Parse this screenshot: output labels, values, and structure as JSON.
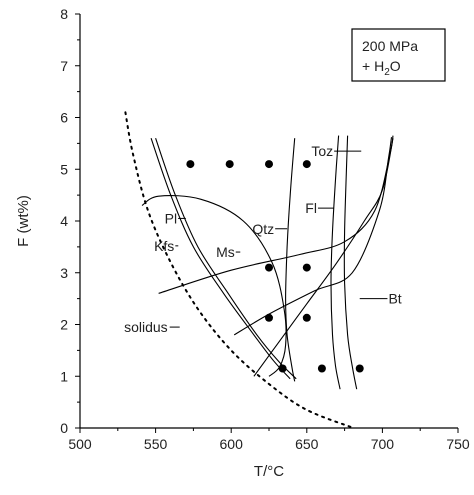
{
  "chart_data": {
    "type": "scatter",
    "title": "",
    "xlabel": "T/°C",
    "ylabel": "F (wt%)",
    "xlim": [
      500,
      750
    ],
    "ylim": [
      0,
      8
    ],
    "xticks": [
      "500",
      "550",
      "600",
      "650",
      "700",
      "750"
    ],
    "yticks": [
      "0",
      "1",
      "2",
      "3",
      "4",
      "5",
      "6",
      "7",
      "8"
    ],
    "grid": false,
    "conditions": {
      "line1": "200 MPa",
      "line2_prefix": "+ H",
      "line2_sub": "2",
      "line2_suffix": "O"
    },
    "points": [
      {
        "x": 573,
        "y": 5.1
      },
      {
        "x": 599,
        "y": 5.1
      },
      {
        "x": 625,
        "y": 5.1
      },
      {
        "x": 650,
        "y": 5.1
      },
      {
        "x": 625,
        "y": 3.1
      },
      {
        "x": 650,
        "y": 3.1
      },
      {
        "x": 625,
        "y": 2.13
      },
      {
        "x": 650,
        "y": 2.13
      },
      {
        "x": 634,
        "y": 1.15
      },
      {
        "x": 660,
        "y": 1.15
      },
      {
        "x": 685,
        "y": 1.15
      }
    ],
    "solidus": {
      "label": "solidus",
      "points": [
        [
          530,
          6.1
        ],
        [
          535,
          5.3
        ],
        [
          545,
          4.2
        ],
        [
          560,
          3.2
        ],
        [
          578,
          2.3
        ],
        [
          600,
          1.5
        ],
        [
          625,
          0.85
        ],
        [
          650,
          0.35
        ],
        [
          681,
          0.0
        ]
      ],
      "label_pos": [
        558,
        1.95
      ]
    },
    "curves": [
      {
        "name": "Kfs",
        "label": "Kfs",
        "points": [
          [
            547,
            5.6
          ],
          [
            560,
            4.5
          ],
          [
            575,
            3.5
          ],
          [
            595,
            2.6
          ],
          [
            615,
            1.8
          ],
          [
            628,
            1.3
          ],
          [
            639,
            0.95
          ]
        ],
        "label_pos": [
          549,
          3.52
        ],
        "leader_at": [
          565,
          3.52
        ]
      },
      {
        "name": "Pl",
        "label": "Pl",
        "points": [
          [
            550,
            5.6
          ],
          [
            563,
            4.5
          ],
          [
            578,
            3.5
          ],
          [
            598,
            2.6
          ],
          [
            617,
            1.8
          ],
          [
            631,
            1.3
          ],
          [
            643,
            0.95
          ]
        ],
        "label_pos": [
          556,
          4.05
        ],
        "leader_at": [
          570,
          4.05
        ]
      },
      {
        "name": "Ms",
        "label": "Ms",
        "points": [
          [
            541,
            4.3
          ],
          [
            552,
            4.48
          ],
          [
            580,
            4.42
          ],
          [
            608,
            4.0
          ],
          [
            627,
            3.2
          ],
          [
            635,
            2.3
          ],
          [
            636,
            1.6
          ],
          [
            632,
            1.18
          ],
          [
            625,
            1.0
          ]
        ],
        "label_pos": [
          590,
          3.4
        ],
        "leader_at": [
          606,
          3.5
        ]
      },
      {
        "name": "Qtz",
        "label": "Qtz",
        "points": [
          [
            642,
            5.6
          ],
          [
            639,
            4.5
          ],
          [
            637,
            3.5
          ],
          [
            636,
            2.5
          ],
          [
            637,
            1.8
          ],
          [
            640,
            1.2
          ],
          [
            642,
            0.9
          ]
        ],
        "label_pos": [
          614,
          3.85
        ],
        "leader_at": [
          637,
          3.85
        ]
      },
      {
        "name": "Fl",
        "label": "Fl",
        "points": [
          [
            552,
            2.6
          ],
          [
            600,
            3.05
          ],
          [
            645,
            3.35
          ],
          [
            675,
            3.6
          ],
          [
            695,
            4.2
          ],
          [
            705,
            5.3
          ],
          [
            707,
            5.65
          ]
        ],
        "label_pos": [
          649,
          4.25
        ],
        "leader_at": [
          668,
          4.25
        ]
      },
      {
        "name": "Bt",
        "label": "Bt",
        "points": [
          [
            602,
            1.8
          ],
          [
            625,
            2.2
          ],
          [
            655,
            2.65
          ],
          [
            680,
            3.0
          ],
          [
            698,
            4.2
          ],
          [
            704,
            5.2
          ],
          [
            706,
            5.62
          ]
        ],
        "label_pos": [
          704,
          2.5
        ],
        "leader_at": [
          685,
          2.5
        ]
      },
      {
        "name": "Toz",
        "label": "Toz",
        "points": [
          [
            671,
            5.65
          ],
          [
            669,
            4.8
          ],
          [
            667,
            3.8
          ],
          [
            666,
            2.8
          ],
          [
            667,
            1.8
          ],
          [
            669,
            1.2
          ],
          [
            672,
            0.75
          ]
        ],
        "label_pos": [
          653,
          5.35
        ],
        "leader_at": [
          686,
          5.35
        ]
      },
      {
        "name": "Toz-b",
        "label": "",
        "points": [
          [
            677,
            5.65
          ],
          [
            676,
            4.8
          ],
          [
            675,
            3.8
          ],
          [
            675,
            2.8
          ],
          [
            677,
            1.8
          ],
          [
            680,
            1.2
          ],
          [
            683,
            0.75
          ]
        ]
      },
      {
        "name": "Ms-b",
        "label": "",
        "points": [
          [
            615,
            1.0
          ],
          [
            630,
            1.6
          ],
          [
            650,
            2.4
          ],
          [
            670,
            3.2
          ],
          [
            688,
            4.0
          ],
          [
            700,
            4.6
          ],
          [
            707,
            5.6
          ]
        ]
      }
    ]
  }
}
